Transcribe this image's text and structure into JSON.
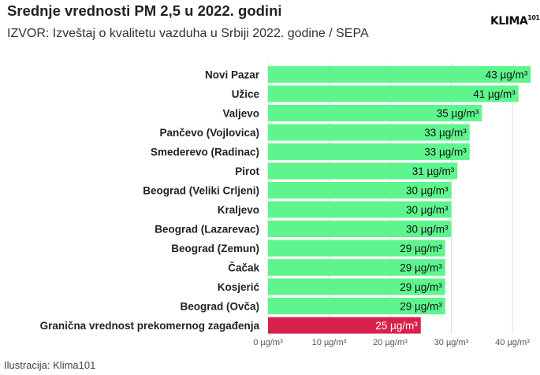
{
  "header": {
    "title": "Srednje vrednosti PM 2,5 u 2022. godini",
    "subtitle": "IZVOR: Izveštaj o kvalitetu vazduha u Srbiji 2022. godine / SEPA",
    "logo": "KLIMA",
    "logo_sup": "101"
  },
  "footer": {
    "credit": "Ilustracija: Klima101"
  },
  "colors": {
    "bar": "#5ef58e",
    "limit_bar": "#d8214b",
    "grid": "#dddddd"
  },
  "chart_data": {
    "type": "bar",
    "orientation": "horizontal",
    "unit": "µg/m³",
    "categories": [
      "Novi Pazar",
      "Užice",
      "Valjevo",
      "Pančevo (Vojlovica)",
      "Smederevo (Radinac)",
      "Pirot",
      "Beograd (Veliki Crljeni)",
      "Kraljevo",
      "Beograd (Lazarevac)",
      "Beograd (Zemun)",
      "Čačak",
      "Kosjerić",
      "Beograd (Ovča)",
      "Granična vrednost prekomernog zagađenja"
    ],
    "values": [
      43,
      41,
      35,
      33,
      33,
      31,
      30,
      30,
      30,
      29,
      29,
      29,
      29,
      25
    ],
    "data_labels": [
      "43 µg/m³",
      "41 µg/m³",
      "35 µg/m³",
      "33 µg/m³",
      "33 µg/m³",
      "31 µg/m³",
      "30 µg/m³",
      "30 µg/m³",
      "30 µg/m³",
      "29 µg/m³",
      "29 µg/m³",
      "29 µg/m³",
      "29 µg/m³",
      "25 µg/m³"
    ],
    "highlight": "Granična vrednost prekomernog zagađenja",
    "xlim": [
      0,
      43.5
    ],
    "xticks": [
      0,
      10,
      20,
      30,
      40
    ],
    "xtick_labels": [
      "0 µg/m³",
      "10 µg/m³",
      "20 µg/m³",
      "30 µg/m³",
      "40 µg/m³"
    ],
    "grid": "vertical"
  }
}
